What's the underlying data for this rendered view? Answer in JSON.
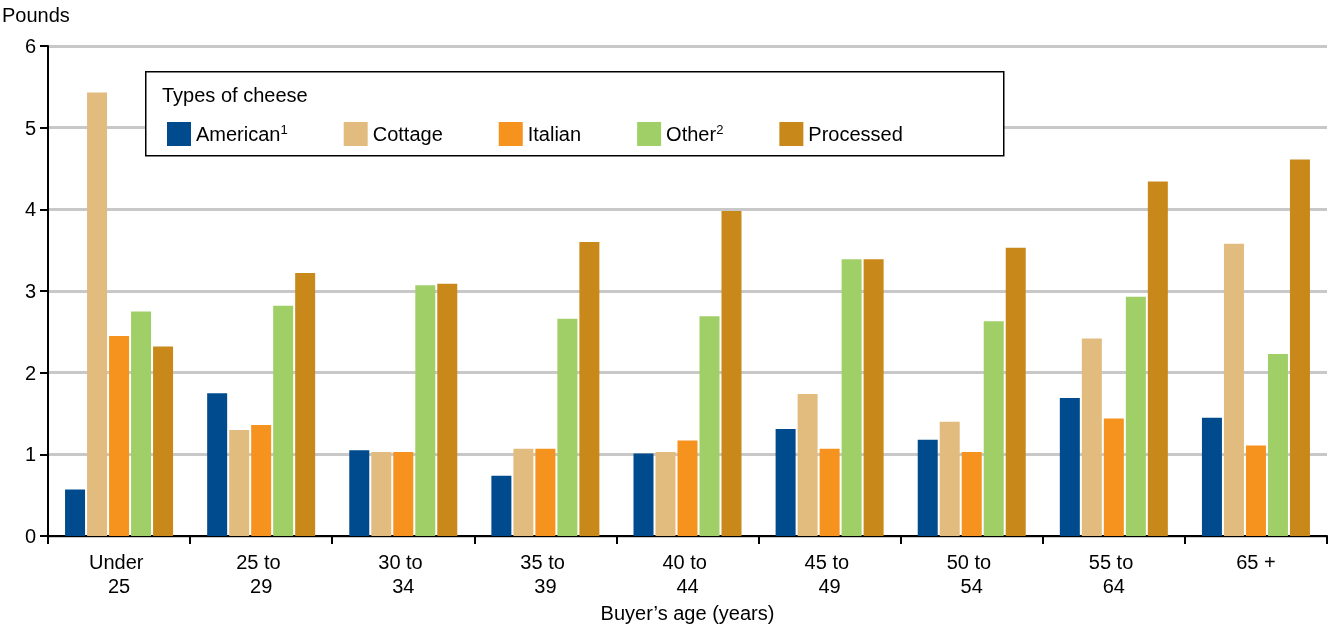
{
  "chart_data": {
    "type": "bar",
    "ylabel": "Pounds",
    "xlabel": "Buyer’s age (years)",
    "legend_title": "Types of cheese",
    "categories": [
      "Under 25",
      "25 to 29",
      "30 to 34",
      "35 to 39",
      "40 to 44",
      "45 to 49",
      "50 to 54",
      "55 to 64",
      "65 +"
    ],
    "series": [
      {
        "name": "American$^{1}$",
        "color": "#004b8d",
        "values": [
          0.57,
          1.75,
          1.05,
          0.74,
          1.01,
          1.31,
          1.18,
          1.69,
          1.45
        ]
      },
      {
        "name": "Cottage",
        "color": "#e2bc7f",
        "values": [
          5.43,
          1.3,
          1.03,
          1.07,
          1.03,
          1.74,
          1.4,
          2.42,
          3.58
        ]
      },
      {
        "name": "Italian",
        "color": "#f6921e",
        "values": [
          2.45,
          1.36,
          1.03,
          1.07,
          1.17,
          1.07,
          1.03,
          1.44,
          1.11
        ]
      },
      {
        "name": "Other$^{2}$",
        "color": "#a1cf67",
        "values": [
          2.75,
          2.82,
          3.07,
          2.66,
          2.69,
          3.39,
          2.63,
          2.93,
          2.23
        ]
      },
      {
        "name": "Processed",
        "color": "#c8891a",
        "values": [
          2.32,
          3.22,
          3.09,
          3.6,
          3.98,
          3.39,
          3.53,
          4.34,
          4.61
        ]
      }
    ],
    "ylim": [
      0,
      6
    ],
    "yticks": [
      0,
      1,
      2,
      3,
      4,
      5,
      6
    ],
    "grid": "y",
    "legend": "top left"
  }
}
